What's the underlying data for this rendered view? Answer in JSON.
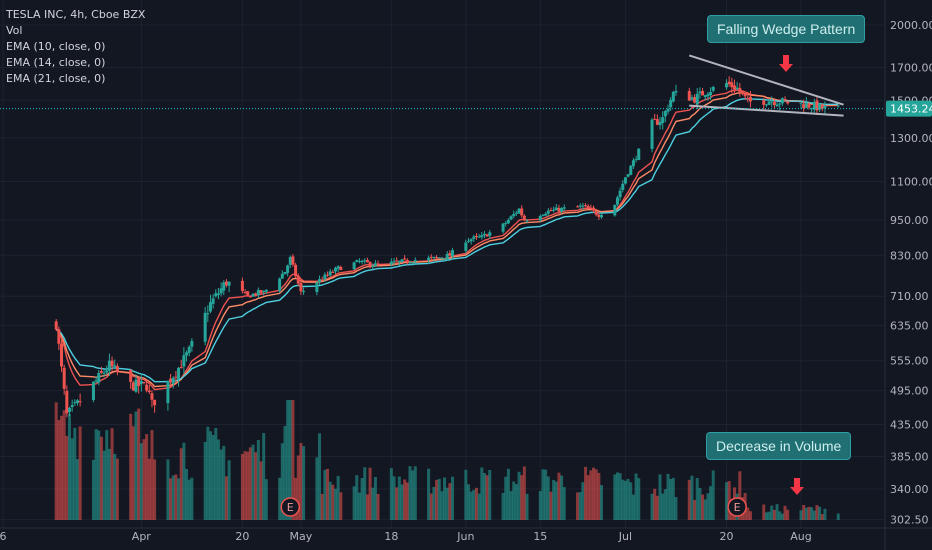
{
  "legend": {
    "symbol": "TESLA INC, 4h, Cboe BZX",
    "vol": "Vol",
    "ema10": "EMA (10, close, 0)",
    "ema14": "EMA (14, close, 0)",
    "ema21": "EMA (21, close, 0)"
  },
  "annotations": {
    "wedge": "Falling Wedge Pattern",
    "volume": "Decrease in Volume",
    "earnings_marker": "E"
  },
  "colors": {
    "background": "#131722",
    "up": "#26a69a",
    "down": "#ef5350",
    "ema10": "#ef5350",
    "ema14": "#ff8a65",
    "ema21": "#4dd0e1",
    "wedge_lines": "#b2b5be",
    "price_line": "#26c6da",
    "arrow": "#f23645"
  },
  "chart_data": {
    "type": "candlestick",
    "title": "TESLA INC, 4h, Cboe BZX",
    "y_scale": "log",
    "ylim": [
      293,
      2200
    ],
    "y_ticks": [
      "2000.00",
      "1700.00",
      "1500.00",
      "1300.00",
      "1100.00",
      "950.00",
      "830.00",
      "710.00",
      "635.00",
      "555.00",
      "495.00",
      "435.00",
      "385.00",
      "340.00",
      "302.50"
    ],
    "x_labels": [
      "6",
      "Apr",
      "20",
      "May",
      "18",
      "Jun",
      "15",
      "Jul",
      "20",
      "Aug"
    ],
    "last_price": "1453.24",
    "price_path": [
      [
        "Mar 16",
        640
      ],
      [
        "Mar 18",
        450
      ],
      [
        "Mar 20",
        470
      ],
      [
        "Mar 24",
        520
      ],
      [
        "Mar 26",
        545
      ],
      [
        "Mar 30",
        505
      ],
      [
        "Apr 2",
        505
      ],
      [
        "Apr 3",
        470
      ],
      [
        "Apr 8",
        540
      ],
      [
        "Apr 10",
        575
      ],
      [
        "Apr 14",
        690
      ],
      [
        "Apr 17",
        750
      ],
      [
        "Apr 21",
        710
      ],
      [
        "Apr 23",
        720
      ],
      [
        "Apr 24",
        720
      ],
      [
        "Apr 28",
        780
      ],
      [
        "Apr 29",
        820
      ],
      [
        "May 1",
        720
      ],
      [
        "May 4",
        750
      ],
      [
        "May 8",
        790
      ],
      [
        "May 12",
        810
      ],
      [
        "May 15",
        800
      ],
      [
        "May 18",
        805
      ],
      [
        "May 22",
        815
      ],
      [
        "May 26",
        820
      ],
      [
        "May 29",
        830
      ],
      [
        "Jun 1",
        880
      ],
      [
        "Jun 4",
        890
      ],
      [
        "Jun 8",
        930
      ],
      [
        "Jun 11",
        990
      ],
      [
        "Jun 12",
        950
      ],
      [
        "Jun 16",
        980
      ],
      [
        "Jun 19",
        990
      ],
      [
        "Jun 23",
        1000
      ],
      [
        "Jun 26",
        970
      ],
      [
        "Jun 29",
        1010
      ],
      [
        "Jul 1",
        1120
      ],
      [
        "Jul 3",
        1210
      ],
      [
        "Jul 6",
        1370
      ],
      [
        "Jul 8",
        1400
      ],
      [
        "Jul 10",
        1540
      ],
      [
        "Jul 14",
        1510
      ],
      [
        "Jul 16",
        1550
      ],
      [
        "Jul 20",
        1600
      ],
      [
        "Jul 22",
        1570
      ],
      [
        "Jul 24",
        1490
      ],
      [
        "Jul 28",
        1500
      ],
      [
        "Jul 31",
        1490
      ],
      [
        "Aug 3",
        1480
      ],
      [
        "Aug 5",
        1470
      ],
      [
        "Aug 7",
        1455
      ],
      [
        "Aug 10",
        1453.24
      ]
    ],
    "emas": [
      {
        "name": "EMA (10, close, 0)",
        "period": 10
      },
      {
        "name": "EMA (14, close, 0)",
        "period": 14
      },
      {
        "name": "EMA (21, close, 0)",
        "period": 21
      }
    ],
    "wedge": {
      "upper": [
        [
          "Jul 13",
          1780
        ],
        [
          "Aug 11",
          1475
        ]
      ],
      "lower": [
        [
          "Jul 13",
          1470
        ],
        [
          "Aug 11",
          1415
        ]
      ]
    },
    "earnings_dates": [
      "Apr 29",
      "Jul 22"
    ],
    "volume": {
      "peak_period": "Mar–May",
      "trend_into_Aug": "decreasing"
    },
    "grid": true
  }
}
